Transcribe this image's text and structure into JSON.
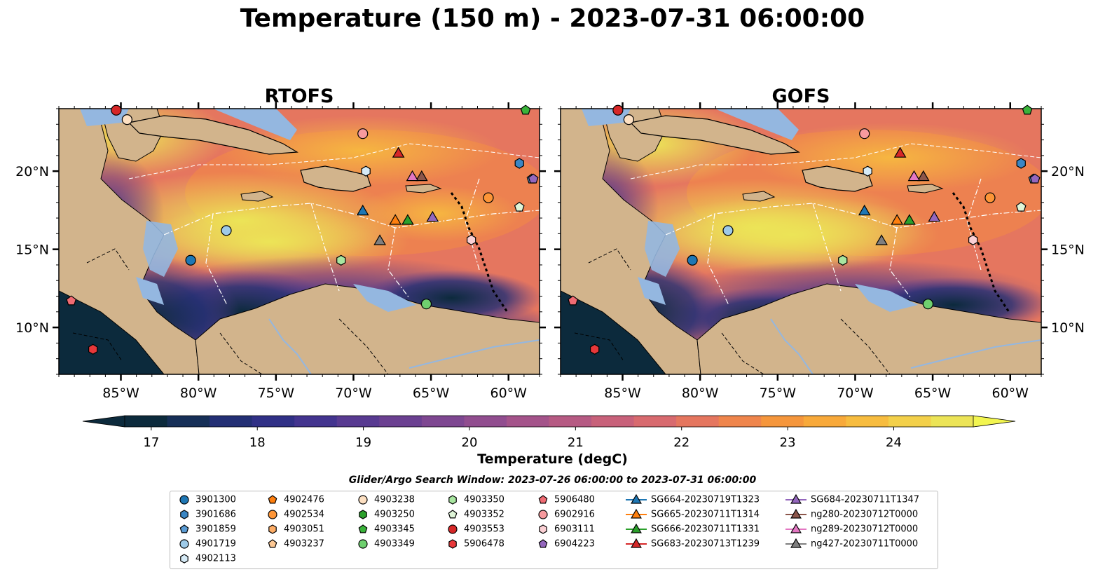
{
  "title": "Temperature (150 m) - 2023-07-31 06:00:00",
  "panels": [
    {
      "title": "RTOFS"
    },
    {
      "title": "GOFS"
    }
  ],
  "map_extent": {
    "lon": [
      -89,
      -58
    ],
    "lat": [
      7,
      24
    ]
  },
  "lon_ticks": [
    {
      "value": -85,
      "label": "85°W"
    },
    {
      "value": -80,
      "label": "80°W"
    },
    {
      "value": -75,
      "label": "75°W"
    },
    {
      "value": -70,
      "label": "70°W"
    },
    {
      "value": -65,
      "label": "65°W"
    },
    {
      "value": -60,
      "label": "60°W"
    }
  ],
  "lat_ticks": [
    {
      "value": 20,
      "label": "20°N"
    },
    {
      "value": 15,
      "label": "15°N"
    },
    {
      "value": 10,
      "label": "10°N"
    }
  ],
  "colorbar": {
    "title": "Temperature (degC)",
    "min": 16.75,
    "max": 24.75,
    "step": 0.5,
    "ticks": [
      {
        "value": 17,
        "label": "17"
      },
      {
        "value": 18,
        "label": "18"
      },
      {
        "value": 19,
        "label": "19"
      },
      {
        "value": 20,
        "label": "20"
      },
      {
        "value": 21,
        "label": "21"
      },
      {
        "value": 22,
        "label": "22"
      },
      {
        "value": 23,
        "label": "23"
      },
      {
        "value": 24,
        "label": "24"
      }
    ],
    "colors": [
      "#0c2a3c",
      "#162f57",
      "#232f74",
      "#303086",
      "#43348f",
      "#583a91",
      "#6b4091",
      "#7e4791",
      "#914d8f",
      "#a4538a",
      "#b65a83",
      "#c8617a",
      "#d86a6f",
      "#e5765f",
      "#ef854c",
      "#f5963c",
      "#f8a93a",
      "#f7bc3f",
      "#f3d04a",
      "#ece457"
    ]
  },
  "legend": {
    "window_text": "Glider/Argo Search Window: 2023-07-26 06:00:00 to 2023-07-31 06:00:00",
    "columns": [
      [
        {
          "label": "3901300",
          "marker": "circle",
          "color": "#1f77b4"
        },
        {
          "label": "3901686",
          "marker": "hexagon",
          "color": "#3a86c4"
        },
        {
          "label": "3901859",
          "marker": "pentagon",
          "color": "#5a9bd4"
        },
        {
          "label": "4901719",
          "marker": "circle",
          "color": "#9ecae8"
        },
        {
          "label": "4902113",
          "marker": "hexagon",
          "color": "#d6ebf7"
        }
      ],
      [
        {
          "label": "4902476",
          "marker": "pentagon",
          "color": "#ff7f0e"
        },
        {
          "label": "4902534",
          "marker": "circle",
          "color": "#fd9537"
        },
        {
          "label": "4903051",
          "marker": "hexagon",
          "color": "#fdad66"
        },
        {
          "label": "4903237",
          "marker": "pentagon",
          "color": "#fdc894"
        }
      ],
      [
        {
          "label": "4903238",
          "marker": "circle",
          "color": "#fde0c2"
        },
        {
          "label": "4903250",
          "marker": "hexagon",
          "color": "#2ca02c"
        },
        {
          "label": "4903345",
          "marker": "pentagon",
          "color": "#3ab33a"
        },
        {
          "label": "4903349",
          "marker": "circle",
          "color": "#6fd06f"
        }
      ],
      [
        {
          "label": "4903350",
          "marker": "hexagon",
          "color": "#a8e6a0"
        },
        {
          "label": "4903352",
          "marker": "pentagon",
          "color": "#dff5d8"
        },
        {
          "label": "4903553",
          "marker": "circle",
          "color": "#d62728"
        },
        {
          "label": "5906478",
          "marker": "hexagon",
          "color": "#e8383a"
        }
      ],
      [
        {
          "label": "5906480",
          "marker": "pentagon",
          "color": "#f06b73"
        },
        {
          "label": "6902916",
          "marker": "circle",
          "color": "#f79a9e"
        },
        {
          "label": "6903111",
          "marker": "hexagon",
          "color": "#fbd0d4"
        },
        {
          "label": "6904223",
          "marker": "pentagon",
          "color": "#9467bd"
        }
      ],
      [
        {
          "label": "SG664-20230719T1323",
          "marker": "triangle",
          "color": "#1f77b4"
        },
        {
          "label": "SG665-20230711T1314",
          "marker": "triangle",
          "color": "#ff7f0e"
        },
        {
          "label": "SG666-20230711T1331",
          "marker": "triangle",
          "color": "#2ca02c"
        },
        {
          "label": "SG683-20230713T1239",
          "marker": "triangle",
          "color": "#d62728"
        }
      ],
      [
        {
          "label": "SG684-20230711T1347",
          "marker": "triangle",
          "color": "#9467bd"
        },
        {
          "label": "ng280-20230712T0000",
          "marker": "triangle",
          "color": "#8c564b"
        },
        {
          "label": "ng289-20230712T0000",
          "marker": "triangle",
          "color": "#e377c2"
        },
        {
          "label": "ng427-20230711T0000",
          "marker": "triangle",
          "color": "#7f7f7f"
        }
      ]
    ]
  },
  "platforms": [
    {
      "id": "3901300",
      "lon": -80.5,
      "lat": 14.3
    },
    {
      "id": "3901686",
      "lon": -59.3,
      "lat": 20.5
    },
    {
      "id": "3901859",
      "lon": -58.5,
      "lat": 19.5
    },
    {
      "id": "4901719",
      "lon": -78.2,
      "lat": 16.2
    },
    {
      "id": "4902113",
      "lon": -69.2,
      "lat": 20.0
    },
    {
      "id": "4902534",
      "lon": -61.3,
      "lat": 18.3
    },
    {
      "id": "4903238",
      "lon": -84.6,
      "lat": 23.3
    },
    {
      "id": "4903345",
      "lon": -58.9,
      "lat": 23.9
    },
    {
      "id": "4903349",
      "lon": -65.3,
      "lat": 11.5
    },
    {
      "id": "4903350",
      "lon": -70.8,
      "lat": 14.3
    },
    {
      "id": "4903352",
      "lon": -59.3,
      "lat": 17.7
    },
    {
      "id": "4903553",
      "lon": -85.3,
      "lat": 23.9
    },
    {
      "id": "5906478",
      "lon": -86.8,
      "lat": 8.6
    },
    {
      "id": "5906480",
      "lon": -88.2,
      "lat": 11.7
    },
    {
      "id": "6902916",
      "lon": -69.4,
      "lat": 22.4
    },
    {
      "id": "6903111",
      "lon": -62.4,
      "lat": 15.6
    },
    {
      "id": "6904223",
      "lon": -58.4,
      "lat": 19.5
    },
    {
      "id": "SG664-20230719T1323",
      "lon": -69.4,
      "lat": 17.4
    },
    {
      "id": "SG665-20230711T1314",
      "lon": -67.3,
      "lat": 16.8
    },
    {
      "id": "SG666-20230711T1331",
      "lon": -66.5,
      "lat": 16.8
    },
    {
      "id": "SG683-20230713T1239",
      "lon": -67.1,
      "lat": 21.1
    },
    {
      "id": "SG684-20230711T1347",
      "lon": -64.9,
      "lat": 17.0
    },
    {
      "id": "ng280-20230712T0000",
      "lon": -65.6,
      "lat": 19.6
    },
    {
      "id": "ng289-20230712T0000",
      "lon": -66.2,
      "lat": 19.6
    },
    {
      "id": "ng427-20230711T0000",
      "lon": -68.3,
      "lat": 15.5
    }
  ]
}
